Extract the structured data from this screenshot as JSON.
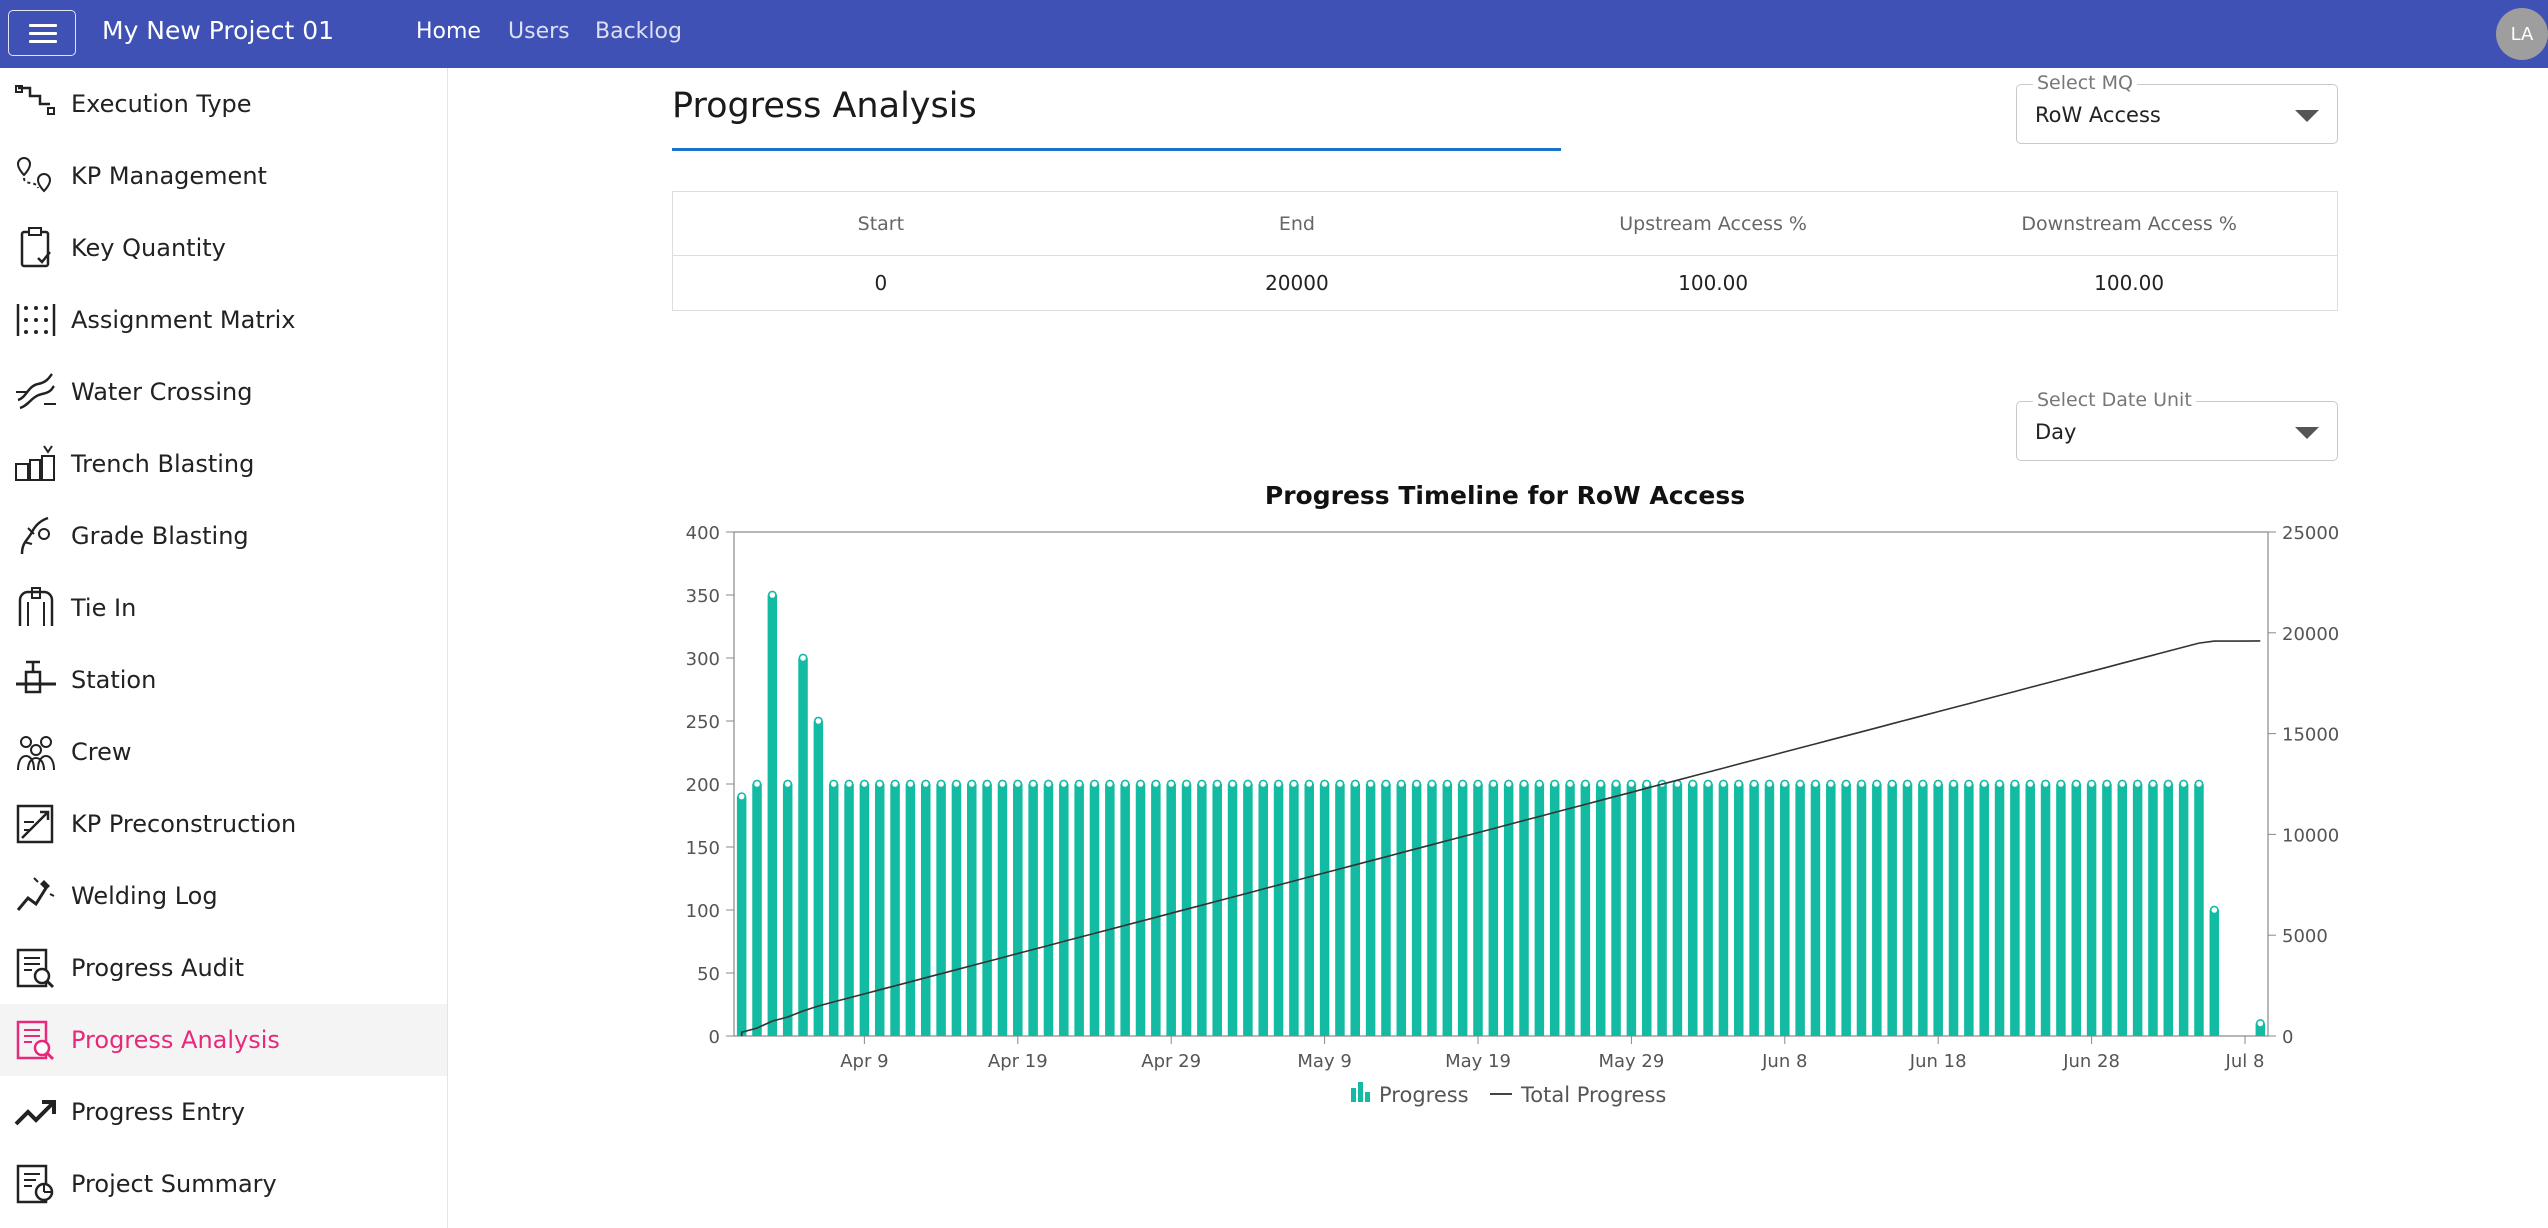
{
  "app": {
    "title": "My New Project 01"
  },
  "nav": {
    "home": "Home",
    "users": "Users",
    "backlog": "Backlog",
    "avatar": "LA"
  },
  "sidebar": {
    "items": [
      {
        "label": "Execution Type",
        "icon": "execution-type-icon"
      },
      {
        "label": "KP Management",
        "icon": "map-pin-route-icon"
      },
      {
        "label": "Key Quantity",
        "icon": "clipboard-check-icon"
      },
      {
        "label": "Assignment Matrix",
        "icon": "matrix-grid-icon"
      },
      {
        "label": "Water Crossing",
        "icon": "water-crossing-icon"
      },
      {
        "label": "Trench Blasting",
        "icon": "trench-blasting-icon"
      },
      {
        "label": "Grade Blasting",
        "icon": "grade-blasting-icon"
      },
      {
        "label": "Tie In",
        "icon": "tie-in-icon"
      },
      {
        "label": "Station",
        "icon": "station-icon"
      },
      {
        "label": "Crew",
        "icon": "crew-icon"
      },
      {
        "label": "KP Preconstruction",
        "icon": "preconstruction-icon"
      },
      {
        "label": "Welding Log",
        "icon": "welding-icon"
      },
      {
        "label": "Progress Audit",
        "icon": "audit-icon"
      },
      {
        "label": "Progress Analysis",
        "icon": "analysis-icon",
        "active": true
      },
      {
        "label": "Progress Entry",
        "icon": "trend-up-icon"
      },
      {
        "label": "Project Summary",
        "icon": "summary-icon"
      }
    ],
    "active_color": "#e8287a"
  },
  "main": {
    "title": "Progress Analysis",
    "select_mq": {
      "label": "Select MQ",
      "value": "RoW Access"
    },
    "select_date_unit": {
      "label": "Select Date Unit",
      "value": "Day"
    },
    "table": {
      "headers": [
        "Start",
        "End",
        "Upstream Access %",
        "Downstream Access %"
      ],
      "rows": [
        [
          "0",
          "20000",
          "100.00",
          "100.00"
        ]
      ]
    }
  },
  "colors": {
    "header": "#3f51b5",
    "bar": "#13bba3",
    "line": "#333333",
    "underline": "#1a73c8"
  },
  "chart_data": {
    "type": "bar",
    "title": "Progress Timeline for RoW Access",
    "x_tick_labels": [
      "Apr 9",
      "Apr 19",
      "Apr 29",
      "May 9",
      "May 19",
      "May 29",
      "Jun 8",
      "Jun 18",
      "Jun 28",
      "Jul 8"
    ],
    "y_left": {
      "ticks": [
        "0",
        "50",
        "100",
        "150",
        "200",
        "250",
        "300",
        "350",
        "400"
      ],
      "lim": [
        0,
        400
      ]
    },
    "y_right": {
      "ticks": [
        "0",
        "5000",
        "10000",
        "15000",
        "20000",
        "25000"
      ],
      "lim": [
        0,
        25000
      ]
    },
    "legend": [
      "Progress",
      "Total Progress"
    ],
    "legend_position": "bottom",
    "series": [
      {
        "name": "Progress",
        "type": "bar",
        "values": [
          190,
          200,
          350,
          200,
          300,
          250,
          200,
          200,
          200,
          200,
          200,
          200,
          200,
          200,
          200,
          200,
          200,
          200,
          200,
          200,
          200,
          200,
          200,
          200,
          200,
          200,
          200,
          200,
          200,
          200,
          200,
          200,
          200,
          200,
          200,
          200,
          200,
          200,
          200,
          200,
          200,
          200,
          200,
          200,
          200,
          200,
          200,
          200,
          200,
          200,
          200,
          200,
          200,
          200,
          200,
          200,
          200,
          200,
          200,
          200,
          200,
          200,
          200,
          200,
          200,
          200,
          200,
          200,
          200,
          200,
          200,
          200,
          200,
          200,
          200,
          200,
          200,
          200,
          200,
          200,
          200,
          200,
          200,
          200,
          200,
          200,
          200,
          200,
          200,
          200,
          200,
          200,
          200,
          200,
          200,
          200,
          100,
          0,
          0,
          10
        ]
      },
      {
        "name": "Total Progress",
        "type": "line",
        "axis": "right",
        "cumulative_of": "Progress"
      }
    ]
  }
}
